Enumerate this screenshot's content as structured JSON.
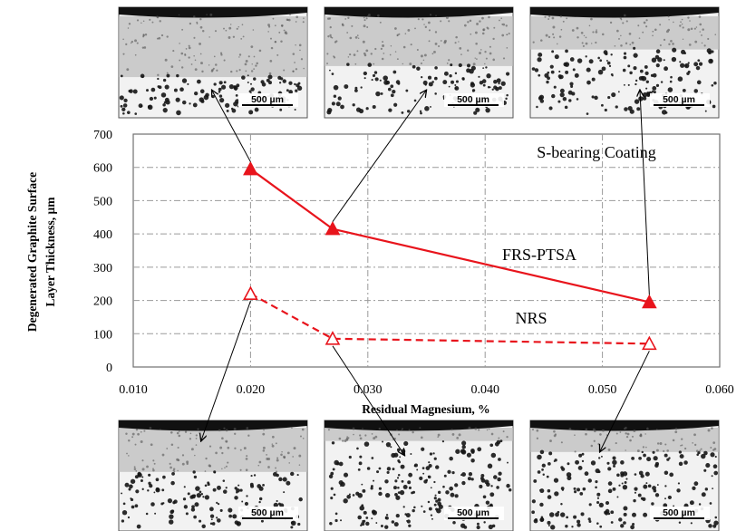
{
  "chart_data": {
    "type": "line",
    "xlabel": "Residual Magnesium, %",
    "ylabel_lines": [
      "Degenerated Graphite Surface",
      "Layer Thickness, µm"
    ],
    "xlim": [
      0.01,
      0.06
    ],
    "ylim": [
      0,
      700
    ],
    "x_ticks": [
      "0.010",
      "0.020",
      "0.030",
      "0.040",
      "0.050",
      "0.060"
    ],
    "y_ticks": [
      "0",
      "100",
      "200",
      "300",
      "400",
      "500",
      "600",
      "700"
    ],
    "grid": true,
    "series": [
      {
        "name": "FRS-PTSA",
        "color": "#e8141c",
        "line_style": "solid",
        "marker": "filled-triangle",
        "x": [
          0.02,
          0.027,
          0.054
        ],
        "y": [
          595,
          415,
          195
        ]
      },
      {
        "name": "NRS",
        "color": "#e8141c",
        "line_style": "dashed",
        "marker": "open-triangle",
        "x": [
          0.02,
          0.027,
          0.054
        ],
        "y": [
          220,
          85,
          70
        ]
      }
    ],
    "annotations": [
      "S-bearing Coating"
    ]
  },
  "micrographs": {
    "scale_bar_label": "500 µm"
  },
  "colors": {
    "series": "#e8141c",
    "grid": "#9a9a9a",
    "plot_border": "#707070"
  }
}
